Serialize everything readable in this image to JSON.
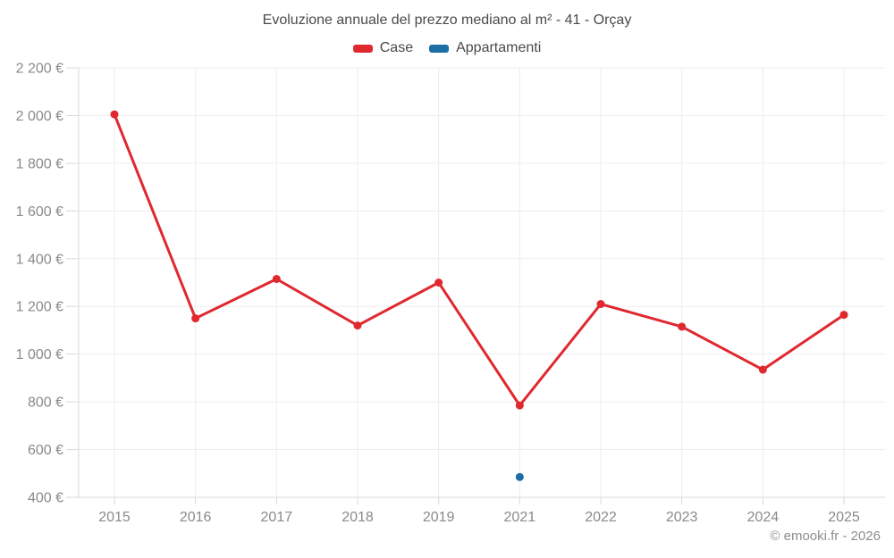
{
  "chart_data": {
    "type": "line",
    "title": "Evoluzione annuale del prezzo mediano al m² - 41 - Orçay",
    "categories": [
      "2015",
      "2016",
      "2017",
      "2018",
      "2019",
      "2021",
      "2022",
      "2023",
      "2024",
      "2025"
    ],
    "series": [
      {
        "name": "Case",
        "color": "#e0282f",
        "point_radius": 4.5,
        "values": [
          2005,
          1150,
          1315,
          1120,
          1300,
          785,
          1210,
          1115,
          935,
          1165
        ]
      },
      {
        "name": "Appartamenti",
        "color": "#1c6ea4",
        "point_radius": 4.5,
        "values": [
          null,
          null,
          null,
          null,
          null,
          485,
          null,
          null,
          null,
          null
        ]
      }
    ],
    "xlabel": "",
    "ylabel": "",
    "ylim": [
      400,
      2200
    ],
    "y_tick_step": 200,
    "y_tick_labels": [
      "400 €",
      "600 €",
      "800 €",
      "1 000 €",
      "1 200 €",
      "1 400 €",
      "1 600 €",
      "1 800 €",
      "2 000 €",
      "2 200 €"
    ],
    "grid": true,
    "legend_position": "top"
  },
  "footer": {
    "copyright": "© emooki.fr - 2026"
  }
}
